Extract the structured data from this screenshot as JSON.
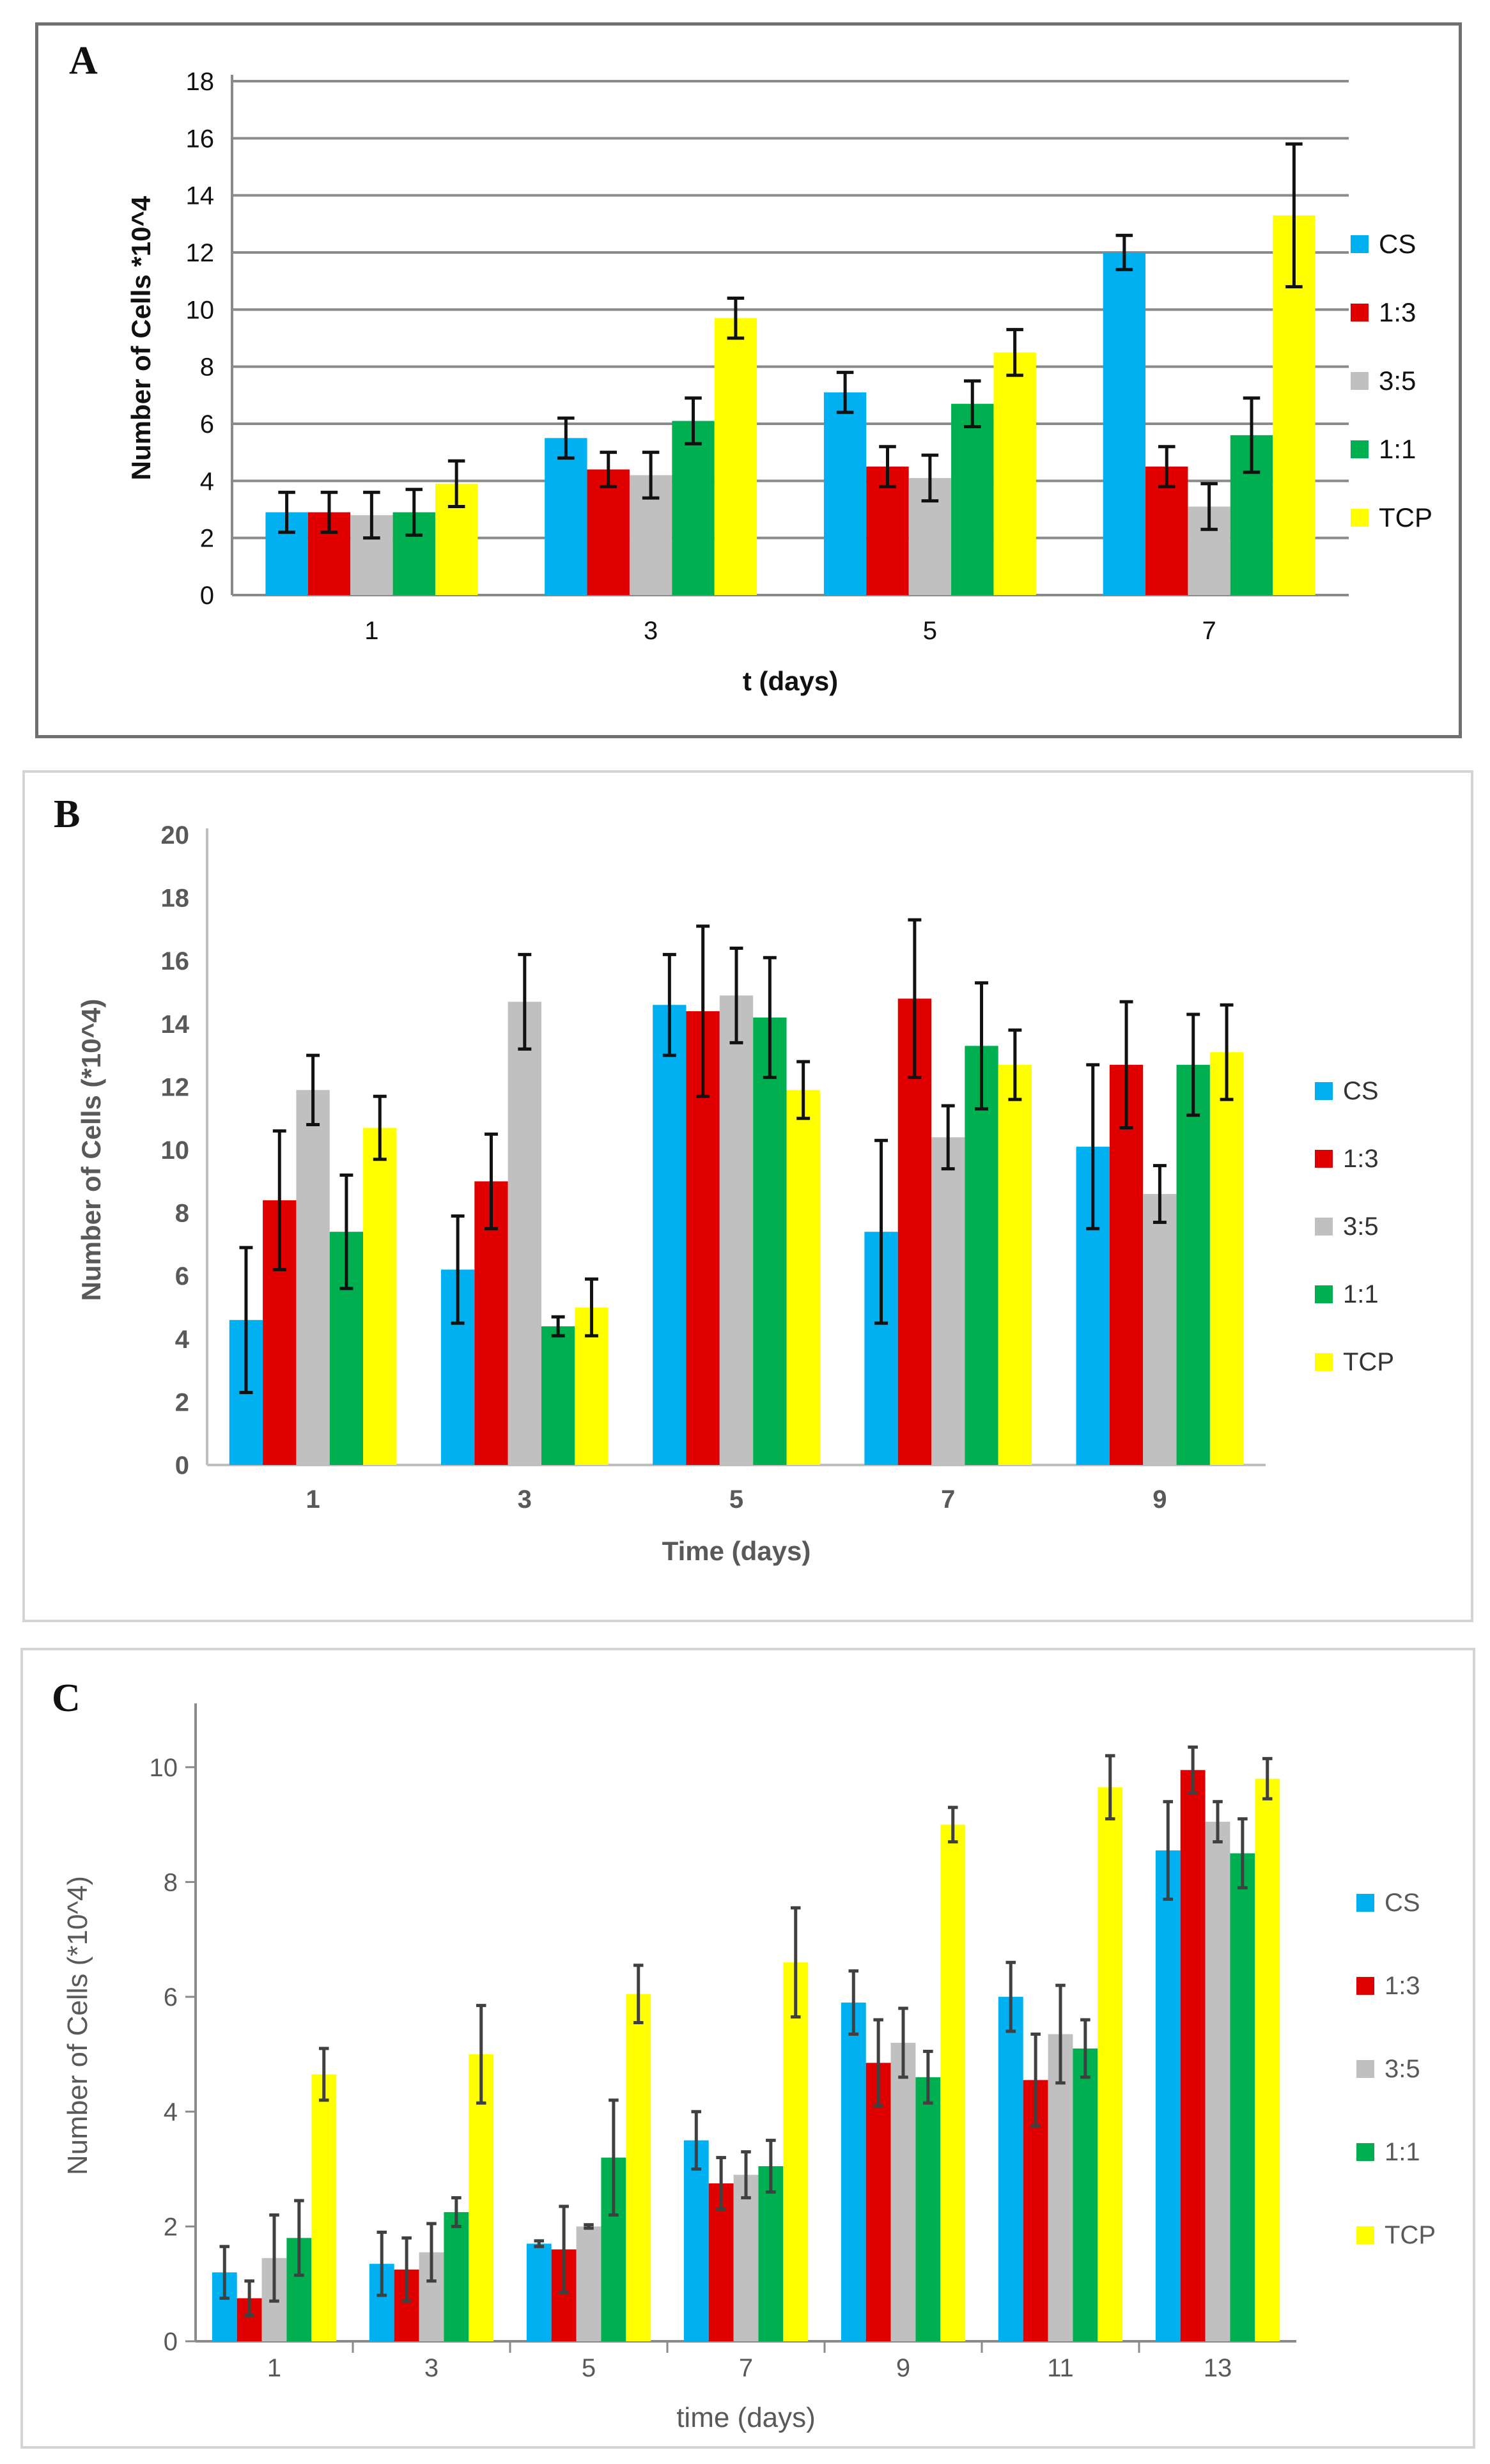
{
  "figure": {
    "panels": [
      {
        "letter": "A",
        "title": "",
        "xlabel": "t (days)",
        "ylabel": "Number of Cells *10^4",
        "ylim": [
          0,
          18
        ],
        "yticks": [
          "0",
          "2",
          "4",
          "6",
          "8",
          "10",
          "12",
          "14",
          "16",
          "18"
        ]
      },
      {
        "letter": "B",
        "title": "",
        "xlabel": "Time (days)",
        "ylabel": "Number of Cells (*10^4)",
        "ylim": [
          0,
          20
        ],
        "yticks": [
          "0",
          "2",
          "4",
          "6",
          "8",
          "10",
          "12",
          "14",
          "16",
          "18",
          "20"
        ]
      },
      {
        "letter": "C",
        "title": "",
        "xlabel": "time (days)",
        "ylabel": "Number of Cells (*10^4)",
        "ylim": [
          0,
          11
        ],
        "yticks": [
          "0",
          "2",
          "4",
          "6",
          "8",
          "10"
        ]
      }
    ]
  },
  "colors": {
    "CS": "#00b0f0",
    "1:3": "#e00000",
    "3:5": "#c0c0c0",
    "1:1": "#00b050",
    "TCP": "#ffff00"
  },
  "chart_data": [
    {
      "type": "bar",
      "title": "",
      "xlabel": "t (days)",
      "ylabel": "Number of Cells *10^4",
      "ylim": [
        0,
        18
      ],
      "grid": true,
      "legend": "right",
      "categories": [
        "1",
        "3",
        "5",
        "7"
      ],
      "series": [
        {
          "name": "CS",
          "values": [
            2.9,
            5.5,
            7.1,
            12.0
          ],
          "errors": [
            0.7,
            0.7,
            0.7,
            0.6
          ]
        },
        {
          "name": "1:3",
          "values": [
            2.9,
            4.4,
            4.5,
            4.5
          ],
          "errors": [
            0.7,
            0.6,
            0.7,
            0.7
          ]
        },
        {
          "name": "3:5",
          "values": [
            2.8,
            4.2,
            4.1,
            3.1
          ],
          "errors": [
            0.8,
            0.8,
            0.8,
            0.8
          ]
        },
        {
          "name": "1:1",
          "values": [
            2.9,
            6.1,
            6.7,
            5.6
          ],
          "errors": [
            0.8,
            0.8,
            0.8,
            1.3
          ]
        },
        {
          "name": "TCP",
          "values": [
            3.9,
            9.7,
            8.5,
            13.3
          ],
          "errors": [
            0.8,
            0.7,
            0.8,
            2.5
          ]
        }
      ]
    },
    {
      "type": "bar",
      "title": "",
      "xlabel": "Time (days)",
      "ylabel": "Number of Cells (*10^4)",
      "ylim": [
        0,
        20
      ],
      "grid": false,
      "legend": "right",
      "categories": [
        "1",
        "3",
        "5",
        "7",
        "9"
      ],
      "series": [
        {
          "name": "CS",
          "values": [
            4.6,
            6.2,
            14.6,
            7.4,
            10.1
          ],
          "errors": [
            2.3,
            1.7,
            1.6,
            2.9,
            2.6
          ]
        },
        {
          "name": "1:3",
          "values": [
            8.4,
            9.0,
            14.4,
            14.8,
            12.7
          ],
          "errors": [
            2.2,
            1.5,
            2.7,
            2.5,
            2.0
          ]
        },
        {
          "name": "3:5",
          "values": [
            11.9,
            14.7,
            14.9,
            10.4,
            8.6
          ],
          "errors": [
            1.1,
            1.5,
            1.5,
            1.0,
            0.9
          ]
        },
        {
          "name": "1:1",
          "values": [
            7.4,
            4.4,
            14.2,
            13.3,
            12.7
          ],
          "errors": [
            1.8,
            0.3,
            1.9,
            2.0,
            1.6
          ]
        },
        {
          "name": "TCP",
          "values": [
            10.7,
            5.0,
            11.9,
            12.7,
            13.1
          ],
          "errors": [
            1.0,
            0.9,
            0.9,
            1.1,
            1.5
          ]
        }
      ]
    },
    {
      "type": "bar",
      "title": "",
      "xlabel": "time (days)",
      "ylabel": "Number of Cells (*10^4)",
      "ylim": [
        0,
        11
      ],
      "grid": false,
      "legend": "right",
      "categories": [
        "1",
        "3",
        "5",
        "7",
        "9",
        "11",
        "13"
      ],
      "series": [
        {
          "name": "CS",
          "values": [
            1.2,
            1.35,
            1.7,
            3.5,
            5.9,
            6.0,
            8.55
          ],
          "errors": [
            0.45,
            0.55,
            0.05,
            0.5,
            0.55,
            0.6,
            0.85
          ]
        },
        {
          "name": "1:3",
          "values": [
            0.75,
            1.25,
            1.6,
            2.75,
            4.85,
            4.55,
            9.95
          ],
          "errors": [
            0.3,
            0.55,
            0.75,
            0.45,
            0.75,
            0.8,
            0.4
          ]
        },
        {
          "name": "3:5",
          "values": [
            1.45,
            1.55,
            2.0,
            2.9,
            5.2,
            5.35,
            9.05
          ],
          "errors": [
            0.75,
            0.5,
            0.03,
            0.4,
            0.6,
            0.85,
            0.35
          ]
        },
        {
          "name": "1:1",
          "values": [
            1.8,
            2.25,
            3.2,
            3.05,
            4.6,
            5.1,
            8.5
          ],
          "errors": [
            0.65,
            0.25,
            1.0,
            0.45,
            0.45,
            0.5,
            0.6
          ]
        },
        {
          "name": "TCP",
          "values": [
            4.65,
            5.0,
            6.05,
            6.6,
            9.0,
            9.65,
            9.8
          ],
          "errors": [
            0.45,
            0.85,
            0.5,
            0.95,
            0.3,
            0.55,
            0.35
          ]
        }
      ]
    }
  ]
}
